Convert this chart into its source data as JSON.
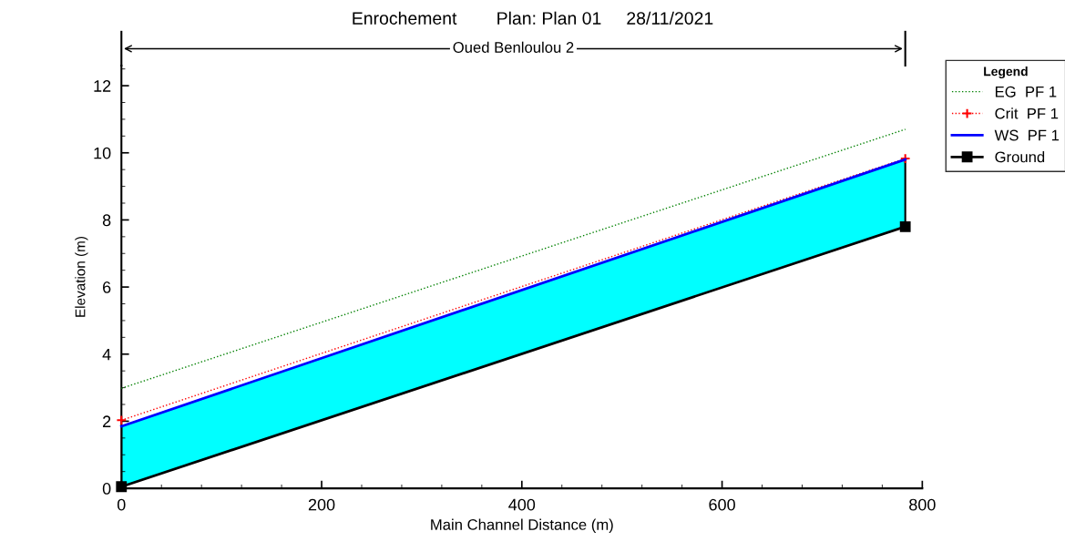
{
  "chart_data": {
    "type": "line",
    "title": "Enrochement        Plan: Plan 01     28/11/2021",
    "xlabel": "Main Channel Distance (m)",
    "ylabel": "Elevation (m)",
    "legend_title": "Legend",
    "x": [
      0,
      783
    ],
    "series": [
      {
        "name": "EG  PF 1",
        "color": "#008000",
        "values": [
          2.98,
          10.7
        ],
        "line_style": "dotted",
        "marker": "none"
      },
      {
        "name": "Crit  PF 1",
        "color": "#ff0000",
        "values": [
          2.03,
          9.83
        ],
        "line_style": "dotted",
        "marker": "cross"
      },
      {
        "name": "WS  PF 1",
        "color": "#0000ff",
        "type": "area",
        "values": [
          1.85,
          9.8
        ],
        "line_style": "solid",
        "marker": "none"
      },
      {
        "name": "Ground",
        "color": "#000000",
        "values": [
          0.05,
          7.8
        ],
        "line_style": "solid",
        "marker": "square"
      }
    ],
    "annotations": [
      "Oued Benloulou 2"
    ],
    "xlim": [
      0,
      800
    ],
    "xticks": [
      0,
      200,
      400,
      600,
      800
    ],
    "ylim": [
      0,
      12.6
    ],
    "yticks": [
      0,
      2,
      4,
      6,
      8,
      10,
      12
    ],
    "grid": false,
    "legend": "right"
  }
}
